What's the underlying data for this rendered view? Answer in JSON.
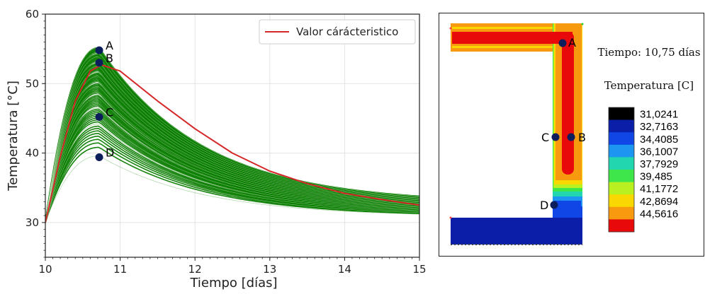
{
  "chart_data": [
    {
      "type": "line",
      "title": "",
      "xlabel": "Tiempo [días]",
      "ylabel": "Temperatura [°C]",
      "xlim": [
        10,
        15
      ],
      "ylim": [
        25,
        60
      ],
      "xticks": [
        "10",
        "11",
        "12",
        "13",
        "14",
        "15"
      ],
      "yticks": [
        "30",
        "40",
        "50",
        "60"
      ],
      "grid": true,
      "legend": {
        "position": "top-right",
        "entries": [
          {
            "name": "Valor cárácteristico",
            "color": "#d62728"
          }
        ]
      },
      "ensemble": {
        "color": "#0a7d00",
        "peak_time": 10.72,
        "peak_min": 39.6,
        "peak_max": 55.2,
        "end_min": 30.8,
        "end_max": 32.8
      },
      "series": [
        {
          "name": "Valor cárácteristico",
          "color": "#d62728",
          "x": [
            10,
            10.2,
            10.4,
            10.6,
            10.75,
            11,
            11.5,
            12,
            12.5,
            13,
            13.5,
            14,
            14.5,
            15
          ],
          "y": [
            30,
            39.5,
            47.5,
            51.8,
            52.7,
            51.8,
            47.5,
            43.5,
            40.0,
            37.4,
            35.6,
            34.2,
            33.3,
            32.5
          ]
        }
      ],
      "points": [
        {
          "label": "A",
          "x": 10.72,
          "y": 54.8
        },
        {
          "label": "B",
          "x": 10.72,
          "y": 53.0
        },
        {
          "label": "C",
          "x": 10.72,
          "y": 45.2
        },
        {
          "label": "D",
          "x": 10.72,
          "y": 39.4
        }
      ]
    },
    {
      "type": "heatmap",
      "title": "Tiempo: 10,75 días",
      "colorbar_title": "Temperatura [C]",
      "colorbar_levels": [
        "31,0241",
        "32,7163",
        "34,4085",
        "36,1007",
        "37,7929",
        "39,485",
        "41,1772",
        "42,8694",
        "44,5616"
      ],
      "colorbar_colors": [
        "#000000",
        "#0b1ea8",
        "#1046e6",
        "#1c96f0",
        "#22d6b0",
        "#3fe64a",
        "#b8f020",
        "#f8d800",
        "#f79a10",
        "#e80a0a"
      ],
      "points": [
        {
          "label": "A"
        },
        {
          "label": "B"
        },
        {
          "label": "C"
        },
        {
          "label": "D"
        }
      ]
    }
  ]
}
